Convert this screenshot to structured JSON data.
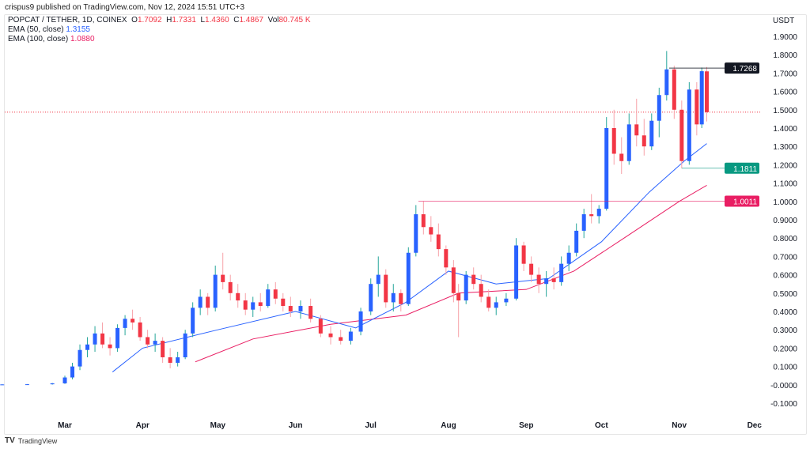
{
  "published": "crispus9 published on TradingView.com, Nov 12, 2024 15:51 UTC+3",
  "legend": {
    "symbol": "POPCAT / TETHER, 1D, COINEX",
    "o_label": "O",
    "o": "1.7092",
    "h_label": "H",
    "h": "1.7331",
    "l_label": "L",
    "l": "1.4360",
    "c_label": "C",
    "c": "1.4867",
    "vol_label": "Vol",
    "vol": "80.745 K",
    "ema50_label": "EMA (50, close)",
    "ema50": "1.3155",
    "ema100_label": "EMA (100, close)",
    "ema100": "1.0880"
  },
  "brand": "TradingView",
  "chart_data": {
    "type": "candlestick",
    "currency": "USDT",
    "ylim": [
      -0.15,
      1.95
    ],
    "y_ticks": [
      "1.9000",
      "1.8000",
      "1.7000",
      "1.6000",
      "1.5000",
      "1.4000",
      "1.3000",
      "1.2000",
      "1.1000",
      "1.0000",
      "0.9000",
      "0.8000",
      "0.7000",
      "0.6000",
      "0.5000",
      "0.4000",
      "0.3000",
      "0.2000",
      "0.1000",
      "-0.0000",
      "-0.1000"
    ],
    "x_ticks": [
      "Mar",
      "Apr",
      "May",
      "Jun",
      "Jul",
      "Aug",
      "Sep",
      "Oct",
      "Nov",
      "Dec"
    ],
    "colors": {
      "up": "#2962ff",
      "down": "#f23645",
      "up_wick": "#26a69a",
      "down_wick": "#f7a1a8",
      "ema50": "#2962ff",
      "ema100": "#e91e63"
    },
    "last_price": 1.4867,
    "levels": [
      {
        "label": "1.7268",
        "value": 1.7268,
        "from": "2024-10-28",
        "color": "#131722"
      },
      {
        "label": "1.1811",
        "value": 1.1811,
        "from": "2024-11-02",
        "color": "#089981"
      },
      {
        "label": "1.0011",
        "value": 1.0011,
        "from": "2024-07-20",
        "color": "#e91e63"
      }
    ],
    "candles": [
      [
        "2024-02-05",
        0.001,
        0.003,
        0.0,
        0.002
      ],
      [
        "2024-02-15",
        0.002,
        0.004,
        0.0,
        0.003
      ],
      [
        "2024-02-25",
        0.003,
        0.01,
        0.001,
        0.008
      ],
      [
        "2024-03-01",
        0.008,
        0.05,
        0.005,
        0.04
      ],
      [
        "2024-03-04",
        0.04,
        0.12,
        0.03,
        0.1
      ],
      [
        "2024-03-07",
        0.1,
        0.22,
        0.08,
        0.19
      ],
      [
        "2024-03-10",
        0.19,
        0.26,
        0.15,
        0.22
      ],
      [
        "2024-03-13",
        0.22,
        0.32,
        0.18,
        0.28
      ],
      [
        "2024-03-16",
        0.28,
        0.34,
        0.2,
        0.22
      ],
      [
        "2024-03-19",
        0.22,
        0.26,
        0.16,
        0.2
      ],
      [
        "2024-03-22",
        0.2,
        0.33,
        0.18,
        0.31
      ],
      [
        "2024-03-25",
        0.31,
        0.38,
        0.27,
        0.36
      ],
      [
        "2024-03-28",
        0.36,
        0.41,
        0.3,
        0.34
      ],
      [
        "2024-03-31",
        0.34,
        0.37,
        0.24,
        0.26
      ],
      [
        "2024-04-03",
        0.26,
        0.3,
        0.2,
        0.22
      ],
      [
        "2024-04-06",
        0.22,
        0.28,
        0.18,
        0.24
      ],
      [
        "2024-04-09",
        0.24,
        0.26,
        0.12,
        0.15
      ],
      [
        "2024-04-12",
        0.15,
        0.2,
        0.09,
        0.12
      ],
      [
        "2024-04-15",
        0.12,
        0.18,
        0.1,
        0.15
      ],
      [
        "2024-04-18",
        0.15,
        0.3,
        0.14,
        0.28
      ],
      [
        "2024-04-21",
        0.28,
        0.45,
        0.26,
        0.42
      ],
      [
        "2024-04-24",
        0.42,
        0.52,
        0.38,
        0.48
      ],
      [
        "2024-04-27",
        0.48,
        0.5,
        0.38,
        0.42
      ],
      [
        "2024-04-30",
        0.42,
        0.65,
        0.4,
        0.6
      ],
      [
        "2024-05-03",
        0.6,
        0.72,
        0.52,
        0.56
      ],
      [
        "2024-05-06",
        0.56,
        0.6,
        0.46,
        0.5
      ],
      [
        "2024-05-09",
        0.5,
        0.55,
        0.42,
        0.46
      ],
      [
        "2024-05-12",
        0.46,
        0.5,
        0.38,
        0.41
      ],
      [
        "2024-05-15",
        0.41,
        0.48,
        0.37,
        0.45
      ],
      [
        "2024-05-18",
        0.45,
        0.5,
        0.4,
        0.43
      ],
      [
        "2024-05-21",
        0.43,
        0.55,
        0.42,
        0.52
      ],
      [
        "2024-05-24",
        0.52,
        0.56,
        0.44,
        0.47
      ],
      [
        "2024-05-27",
        0.47,
        0.5,
        0.4,
        0.43
      ],
      [
        "2024-05-30",
        0.43,
        0.48,
        0.37,
        0.4
      ],
      [
        "2024-06-03",
        0.4,
        0.46,
        0.36,
        0.43
      ],
      [
        "2024-06-07",
        0.43,
        0.47,
        0.34,
        0.36
      ],
      [
        "2024-06-11",
        0.36,
        0.38,
        0.26,
        0.28
      ],
      [
        "2024-06-15",
        0.28,
        0.32,
        0.22,
        0.26
      ],
      [
        "2024-06-19",
        0.26,
        0.3,
        0.22,
        0.24
      ],
      [
        "2024-06-23",
        0.24,
        0.31,
        0.22,
        0.29
      ],
      [
        "2024-06-27",
        0.29,
        0.42,
        0.27,
        0.4
      ],
      [
        "2024-07-01",
        0.4,
        0.58,
        0.38,
        0.55
      ],
      [
        "2024-07-04",
        0.55,
        0.7,
        0.48,
        0.6
      ],
      [
        "2024-07-07",
        0.6,
        0.63,
        0.42,
        0.45
      ],
      [
        "2024-07-10",
        0.45,
        0.55,
        0.4,
        0.5
      ],
      [
        "2024-07-13",
        0.5,
        0.52,
        0.4,
        0.44
      ],
      [
        "2024-07-16",
        0.44,
        0.75,
        0.43,
        0.72
      ],
      [
        "2024-07-19",
        0.72,
        0.98,
        0.7,
        0.93
      ],
      [
        "2024-07-22",
        0.93,
        1.0,
        0.82,
        0.86
      ],
      [
        "2024-07-25",
        0.86,
        0.92,
        0.78,
        0.82
      ],
      [
        "2024-07-28",
        0.82,
        0.88,
        0.7,
        0.74
      ],
      [
        "2024-07-31",
        0.74,
        0.76,
        0.6,
        0.64
      ],
      [
        "2024-08-03",
        0.64,
        0.68,
        0.45,
        0.5
      ],
      [
        "2024-08-05",
        0.5,
        0.55,
        0.26,
        0.46
      ],
      [
        "2024-08-08",
        0.46,
        0.62,
        0.44,
        0.6
      ],
      [
        "2024-08-11",
        0.6,
        0.64,
        0.52,
        0.55
      ],
      [
        "2024-08-14",
        0.55,
        0.6,
        0.45,
        0.48
      ],
      [
        "2024-08-17",
        0.48,
        0.52,
        0.4,
        0.42
      ],
      [
        "2024-08-20",
        0.42,
        0.48,
        0.38,
        0.45
      ],
      [
        "2024-08-24",
        0.45,
        0.5,
        0.43,
        0.47
      ],
      [
        "2024-08-28",
        0.47,
        0.8,
        0.46,
        0.76
      ],
      [
        "2024-08-31",
        0.76,
        0.78,
        0.62,
        0.66
      ],
      [
        "2024-09-03",
        0.66,
        0.7,
        0.56,
        0.6
      ],
      [
        "2024-09-06",
        0.6,
        0.64,
        0.5,
        0.55
      ],
      [
        "2024-09-09",
        0.55,
        0.62,
        0.48,
        0.58
      ],
      [
        "2024-09-12",
        0.58,
        0.64,
        0.52,
        0.56
      ],
      [
        "2024-09-15",
        0.56,
        0.7,
        0.54,
        0.66
      ],
      [
        "2024-09-18",
        0.66,
        0.76,
        0.62,
        0.72
      ],
      [
        "2024-09-21",
        0.72,
        0.88,
        0.7,
        0.84
      ],
      [
        "2024-09-24",
        0.84,
        0.96,
        0.8,
        0.93
      ],
      [
        "2024-09-27",
        0.93,
        1.04,
        0.88,
        0.92
      ],
      [
        "2024-09-30",
        0.92,
        0.98,
        0.88,
        0.96
      ],
      [
        "2024-10-03",
        0.96,
        1.46,
        0.95,
        1.4
      ],
      [
        "2024-10-06",
        1.4,
        1.5,
        1.2,
        1.26
      ],
      [
        "2024-10-09",
        1.26,
        1.35,
        1.15,
        1.22
      ],
      [
        "2024-10-12",
        1.22,
        1.48,
        1.2,
        1.42
      ],
      [
        "2024-10-15",
        1.42,
        1.56,
        1.3,
        1.36
      ],
      [
        "2024-10-18",
        1.36,
        1.45,
        1.25,
        1.3
      ],
      [
        "2024-10-21",
        1.3,
        1.48,
        1.28,
        1.44
      ],
      [
        "2024-10-24",
        1.44,
        1.62,
        1.35,
        1.58
      ],
      [
        "2024-10-27",
        1.58,
        1.82,
        1.55,
        1.72
      ],
      [
        "2024-10-30",
        1.72,
        1.74,
        1.45,
        1.5
      ],
      [
        "2024-11-02",
        1.5,
        1.55,
        1.18,
        1.22
      ],
      [
        "2024-11-05",
        1.22,
        1.65,
        1.2,
        1.61
      ],
      [
        "2024-11-08",
        1.61,
        1.65,
        1.36,
        1.42
      ],
      [
        "2024-11-10",
        1.42,
        1.73,
        1.4,
        1.71
      ],
      [
        "2024-11-12",
        1.7092,
        1.7331,
        1.436,
        1.4867
      ]
    ],
    "ema50": [
      [
        "2024-03-20",
        0.07
      ],
      [
        "2024-04-01",
        0.2
      ],
      [
        "2024-05-01",
        0.3
      ],
      [
        "2024-06-01",
        0.4
      ],
      [
        "2024-06-25",
        0.31
      ],
      [
        "2024-07-15",
        0.45
      ],
      [
        "2024-08-01",
        0.62
      ],
      [
        "2024-08-20",
        0.55
      ],
      [
        "2024-09-10",
        0.58
      ],
      [
        "2024-10-01",
        0.78
      ],
      [
        "2024-10-20",
        1.05
      ],
      [
        "2024-11-03",
        1.22
      ],
      [
        "2024-11-12",
        1.3155
      ]
    ],
    "ema100": [
      [
        "2024-04-22",
        0.125
      ],
      [
        "2024-05-15",
        0.25
      ],
      [
        "2024-06-15",
        0.33
      ],
      [
        "2024-07-15",
        0.38
      ],
      [
        "2024-08-05",
        0.5
      ],
      [
        "2024-09-01",
        0.52
      ],
      [
        "2024-09-20",
        0.62
      ],
      [
        "2024-10-10",
        0.8
      ],
      [
        "2024-11-01",
        1.0
      ],
      [
        "2024-11-12",
        1.088
      ]
    ]
  }
}
